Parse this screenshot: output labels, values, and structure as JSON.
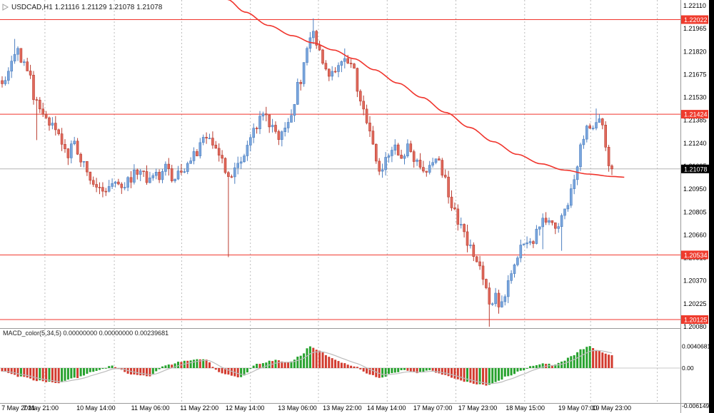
{
  "window": {
    "title": "USDCAD,H1 1.21116 1.21129 1.21078 1.21078",
    "symbol": "USDCAD",
    "timeframe": "H1"
  },
  "colors": {
    "background": "#ffffff",
    "bull": "#7aa6dd",
    "bull_border": "#4d7fc0",
    "bear": "#e0695c",
    "bear_border": "#b93c30",
    "ma_line": "#f0342c",
    "level_line": "#f0342c",
    "bid_line": "#b5b5b5",
    "grid": "#bdbdbd",
    "macd_up": "#27a22e",
    "macd_down": "#d23b2f",
    "macd_signal": "#bcbcbc",
    "tag_red": "#ef3b2d",
    "tag_black": "#000000",
    "axis_text": "#000000",
    "panel_border": "#9a9a9a",
    "right_strip": "#000000"
  },
  "price_axis": {
    "ticks": [
      "1.22110",
      "1.21965",
      "1.21820",
      "1.21675",
      "1.21530",
      "1.21385",
      "1.21240",
      "1.21095",
      "1.20950",
      "1.20805",
      "1.20660",
      "1.20515",
      "1.20370",
      "1.20225",
      "1.20080"
    ],
    "tags": [
      {
        "value": "1.22022",
        "price": 1.22022,
        "style": "red"
      },
      {
        "value": "1.21424",
        "price": 1.21424,
        "style": "red"
      },
      {
        "value": "1.21078",
        "price": 1.21078,
        "style": "black"
      },
      {
        "value": "1.20534",
        "price": 1.20534,
        "style": "red"
      },
      {
        "value": "1.20125",
        "price": 1.20125,
        "style": "red"
      }
    ]
  },
  "time_axis": {
    "labels": [
      {
        "text": "7 May 2021",
        "f": 0.027
      },
      {
        "text": "7 May 21:00",
        "f": 0.06
      },
      {
        "text": "10 May 14:00",
        "f": 0.141
      },
      {
        "text": "11 May 06:00",
        "f": 0.221
      },
      {
        "text": "11 May 22:00",
        "f": 0.293
      },
      {
        "text": "12 May 14:00",
        "f": 0.36
      },
      {
        "text": "13 May 06:00",
        "f": 0.437
      },
      {
        "text": "13 May 22:00",
        "f": 0.503
      },
      {
        "text": "14 May 14:00",
        "f": 0.568
      },
      {
        "text": "17 May 07:00",
        "f": 0.636
      },
      {
        "text": "17 May 23:00",
        "f": 0.702
      },
      {
        "text": "18 May 15:00",
        "f": 0.772
      },
      {
        "text": "19 May 07:00",
        "f": 0.849
      },
      {
        "text": "19 May 23:00",
        "f": 0.899
      }
    ]
  },
  "grid_separators_f": [
    0.066,
    0.168,
    0.267,
    0.368,
    0.468,
    0.569,
    0.67,
    0.771,
    0.868,
    0.966
  ],
  "chart_data": {
    "type": "candlestick",
    "symbol": "USDCAD",
    "timeframe": "H1",
    "bars": 195,
    "current_bar": {
      "open": 1.21116,
      "high": 1.21129,
      "low": 1.21078,
      "close": 1.21078
    },
    "bid_price": 1.21078,
    "y_axis": {
      "min": 1.2008,
      "max": 1.2211,
      "tick_step": 0.00145
    },
    "horizontal_levels": [
      1.22022,
      1.21424,
      1.20534,
      1.20125
    ],
    "close_path_waypoints": [
      [
        0.0,
        1.216
      ],
      [
        0.01,
        1.217
      ],
      [
        0.022,
        1.2182
      ],
      [
        0.032,
        1.2178
      ],
      [
        0.042,
        1.217
      ],
      [
        0.056,
        1.215
      ],
      [
        0.068,
        1.2143
      ],
      [
        0.08,
        1.2136
      ],
      [
        0.092,
        1.2127
      ],
      [
        0.105,
        1.2117
      ],
      [
        0.118,
        1.2122
      ],
      [
        0.13,
        1.2112
      ],
      [
        0.142,
        1.2104
      ],
      [
        0.155,
        1.2099
      ],
      [
        0.168,
        1.2096
      ],
      [
        0.18,
        1.2102
      ],
      [
        0.192,
        1.2097
      ],
      [
        0.205,
        1.21
      ],
      [
        0.218,
        1.2104
      ],
      [
        0.23,
        1.2107
      ],
      [
        0.242,
        1.21
      ],
      [
        0.255,
        1.2103
      ],
      [
        0.268,
        1.2108
      ],
      [
        0.28,
        1.2103
      ],
      [
        0.292,
        1.2107
      ],
      [
        0.305,
        1.2111
      ],
      [
        0.318,
        1.2117
      ],
      [
        0.33,
        1.2125
      ],
      [
        0.34,
        1.2128
      ],
      [
        0.35,
        1.212
      ],
      [
        0.362,
        1.2111
      ],
      [
        0.373,
        1.2099
      ],
      [
        0.383,
        1.2106
      ],
      [
        0.395,
        1.2117
      ],
      [
        0.408,
        1.2128
      ],
      [
        0.42,
        1.2137
      ],
      [
        0.43,
        1.2142
      ],
      [
        0.44,
        1.2133
      ],
      [
        0.452,
        1.2128
      ],
      [
        0.463,
        1.2135
      ],
      [
        0.475,
        1.2145
      ],
      [
        0.487,
        1.2161
      ],
      [
        0.497,
        1.218
      ],
      [
        0.508,
        1.2196
      ],
      [
        0.517,
        1.2186
      ],
      [
        0.528,
        1.2173
      ],
      [
        0.54,
        1.2168
      ],
      [
        0.552,
        1.2175
      ],
      [
        0.563,
        1.218
      ],
      [
        0.575,
        1.217
      ],
      [
        0.587,
        1.2152
      ],
      [
        0.598,
        1.2137
      ],
      [
        0.608,
        1.2122
      ],
      [
        0.62,
        1.2108
      ],
      [
        0.632,
        1.2114
      ],
      [
        0.643,
        1.212
      ],
      [
        0.655,
        1.2116
      ],
      [
        0.667,
        1.2121
      ],
      [
        0.68,
        1.2111
      ],
      [
        0.692,
        1.2104
      ],
      [
        0.703,
        1.2111
      ],
      [
        0.713,
        1.2116
      ],
      [
        0.725,
        1.2104
      ],
      [
        0.738,
        1.2085
      ],
      [
        0.75,
        1.2071
      ],
      [
        0.762,
        1.2062
      ],
      [
        0.773,
        1.2055
      ],
      [
        0.783,
        1.2045
      ],
      [
        0.793,
        1.203
      ],
      [
        0.801,
        1.2018
      ],
      [
        0.81,
        1.2026
      ],
      [
        0.82,
        1.2021
      ],
      [
        0.83,
        1.2036
      ],
      [
        0.842,
        1.2051
      ],
      [
        0.855,
        1.2063
      ],
      [
        0.866,
        1.2059
      ],
      [
        0.877,
        1.207
      ],
      [
        0.888,
        1.2079
      ],
      [
        0.898,
        1.2074
      ],
      [
        0.91,
        1.2069
      ],
      [
        0.92,
        1.2077
      ],
      [
        0.93,
        1.2089
      ],
      [
        0.94,
        1.2104
      ],
      [
        0.95,
        1.2121
      ],
      [
        0.958,
        1.2134
      ],
      [
        0.966,
        1.213
      ],
      [
        0.973,
        1.214
      ],
      [
        0.98,
        1.2141
      ],
      [
        0.986,
        1.2131
      ],
      [
        0.991,
        1.212
      ],
      [
        0.996,
        1.2112
      ],
      [
        1.0,
        1.21078
      ]
    ],
    "wick_overrides": [
      {
        "f": 0.022,
        "high": 1.219
      },
      {
        "f": 0.056,
        "low": 1.2126
      },
      {
        "f": 0.373,
        "low": 1.2052
      },
      {
        "f": 0.43,
        "high": 1.2144
      },
      {
        "f": 0.508,
        "high": 1.2203
      },
      {
        "f": 0.563,
        "high": 1.2184
      },
      {
        "f": 0.801,
        "low": 1.2008
      },
      {
        "f": 0.888,
        "low": 1.2057
      },
      {
        "f": 0.92,
        "low": 1.2056
      },
      {
        "f": 0.973,
        "high": 1.2146
      }
    ],
    "moving_average": {
      "color": "red",
      "waypoints": [
        [
          0.334,
          1.2215
        ],
        [
          0.36,
          1.2207
        ],
        [
          0.395,
          1.21985
        ],
        [
          0.43,
          1.2192
        ],
        [
          0.46,
          1.21875
        ],
        [
          0.49,
          1.2183
        ],
        [
          0.52,
          1.21775
        ],
        [
          0.55,
          1.21705
        ],
        [
          0.585,
          1.2162
        ],
        [
          0.62,
          1.2153
        ],
        [
          0.655,
          1.21435
        ],
        [
          0.69,
          1.2134
        ],
        [
          0.725,
          1.2125
        ],
        [
          0.76,
          1.2117
        ],
        [
          0.795,
          1.2111
        ],
        [
          0.83,
          1.2107
        ],
        [
          0.865,
          1.21045
        ],
        [
          0.9,
          1.2103
        ],
        [
          0.92,
          1.21025
        ]
      ]
    },
    "macd": {
      "label": "MACD_color(5,34,5) 0.00000000 0.00000000 0.00239681",
      "name": "MACD_color",
      "params": "5,34,5",
      "values_display": [
        "0.00000000",
        "0.00000000",
        "0.00239681"
      ],
      "last_value": 0.00239681,
      "axis": [
        {
          "text": "0.0040681",
          "v": 0.0040681
        },
        {
          "text": "0.00",
          "v": 0
        },
        {
          "text": "-0.006149",
          "v": -0.006149
        }
      ],
      "waypoints": [
        [
          0.0,
          -0.0006
        ],
        [
          0.03,
          -0.0016
        ],
        [
          0.06,
          -0.0024
        ],
        [
          0.09,
          -0.0028
        ],
        [
          0.12,
          -0.0018
        ],
        [
          0.15,
          -0.0007
        ],
        [
          0.18,
          0.0004
        ],
        [
          0.21,
          -0.0011
        ],
        [
          0.24,
          -0.0015
        ],
        [
          0.27,
          0.0006
        ],
        [
          0.3,
          0.0013
        ],
        [
          0.33,
          0.0017
        ],
        [
          0.36,
          -0.001
        ],
        [
          0.39,
          -0.0017
        ],
        [
          0.42,
          0.0008
        ],
        [
          0.45,
          0.0015
        ],
        [
          0.47,
          0.001
        ],
        [
          0.49,
          0.0024
        ],
        [
          0.505,
          0.0041
        ],
        [
          0.52,
          0.0033
        ],
        [
          0.54,
          0.0019
        ],
        [
          0.56,
          0.0009
        ],
        [
          0.58,
          0.0003
        ],
        [
          0.6,
          -0.0011
        ],
        [
          0.62,
          -0.0019
        ],
        [
          0.64,
          -0.001
        ],
        [
          0.66,
          -0.0004
        ],
        [
          0.68,
          -0.0009
        ],
        [
          0.7,
          -0.0004
        ],
        [
          0.72,
          -0.0011
        ],
        [
          0.74,
          -0.0019
        ],
        [
          0.76,
          -0.0025
        ],
        [
          0.78,
          -0.003
        ],
        [
          0.795,
          -0.0033
        ],
        [
          0.81,
          -0.0025
        ],
        [
          0.83,
          -0.0015
        ],
        [
          0.85,
          -0.0006
        ],
        [
          0.87,
          0.0004
        ],
        [
          0.89,
          0.0009
        ],
        [
          0.905,
          0.0005
        ],
        [
          0.92,
          0.0013
        ],
        [
          0.935,
          0.0023
        ],
        [
          0.95,
          0.0035
        ],
        [
          0.962,
          0.0041
        ],
        [
          0.975,
          0.0034
        ],
        [
          0.99,
          0.0028
        ],
        [
          1.0,
          0.0024
        ]
      ]
    }
  }
}
